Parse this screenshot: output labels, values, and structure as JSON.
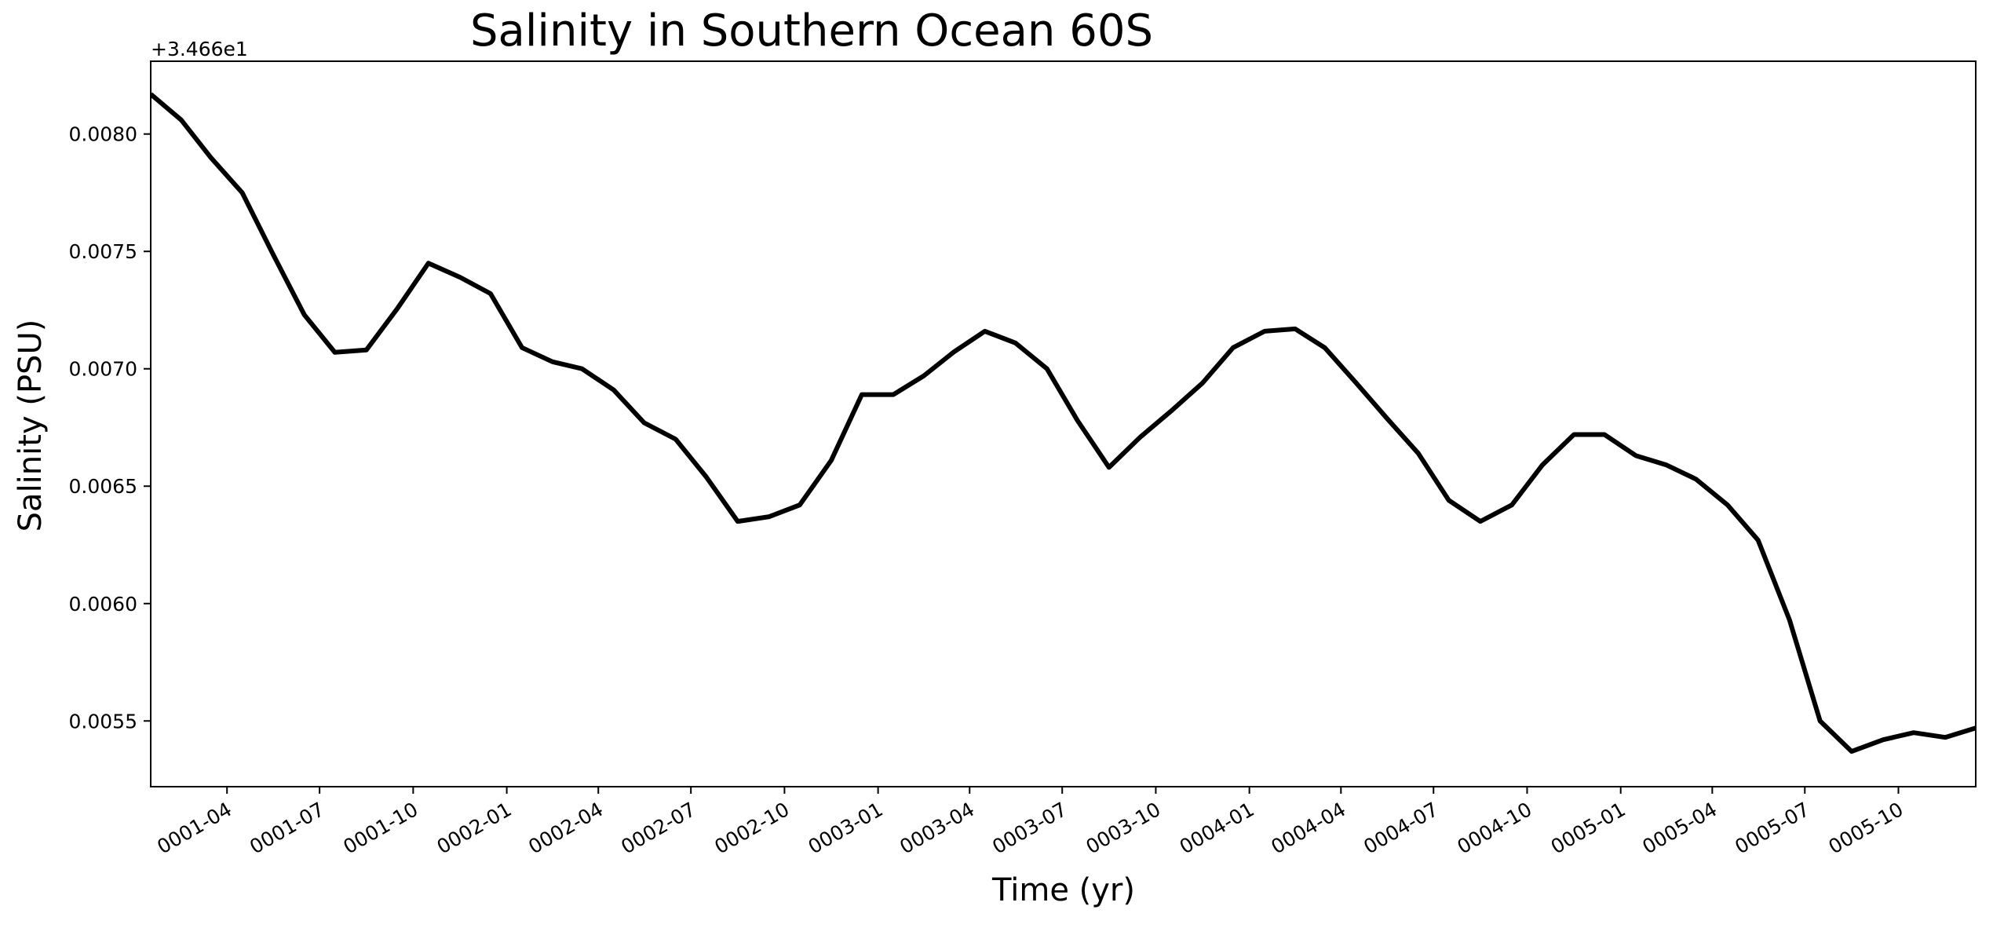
{
  "chart_data": {
    "type": "line",
    "title": "Salinity in Southern Ocean 60S",
    "xlabel": "Time (yr)",
    "ylabel": "Salinity (PSU)",
    "y_offset_label": "+3.466e1",
    "y_offset": 34.66,
    "x_tick_labels": [
      "0001-04",
      "0001-07",
      "0001-10",
      "0002-01",
      "0002-04",
      "0002-07",
      "0002-10",
      "0003-01",
      "0003-04",
      "0003-07",
      "0003-10",
      "0004-01",
      "0004-04",
      "0004-07",
      "0004-10",
      "0005-01",
      "0005-04",
      "0005-07",
      "0005-10"
    ],
    "x_tick_dates": [
      "0001-04-01",
      "0001-07-01",
      "0001-10-01",
      "0002-01-01",
      "0002-04-01",
      "0002-07-01",
      "0002-10-01",
      "0003-01-01",
      "0003-04-01",
      "0003-07-01",
      "0003-10-01",
      "0004-01-01",
      "0004-04-01",
      "0004-07-01",
      "0004-10-01",
      "0005-01-01",
      "0005-04-01",
      "0005-07-01",
      "0005-10-01"
    ],
    "y_tick_labels": [
      "0.0055",
      "0.0060",
      "0.0065",
      "0.0070",
      "0.0075",
      "0.0080"
    ],
    "y_ticks": [
      0.0055,
      0.006,
      0.0065,
      0.007,
      0.0075,
      0.008
    ],
    "xlim": [
      "0001-01-16",
      "0005-12-16"
    ],
    "ylim": [
      0.00522,
      0.00831
    ],
    "grid": false,
    "line_color": "#000000",
    "x": [
      "0001-01-16",
      "0001-02-15",
      "0001-03-16",
      "0001-04-16",
      "0001-05-16",
      "0001-06-16",
      "0001-07-16",
      "0001-08-16",
      "0001-09-16",
      "0001-10-16",
      "0001-11-16",
      "0001-12-16",
      "0002-01-16",
      "0002-02-15",
      "0002-03-16",
      "0002-04-16",
      "0002-05-16",
      "0002-06-16",
      "0002-07-16",
      "0002-08-16",
      "0002-09-16",
      "0002-10-16",
      "0002-11-16",
      "0002-12-16",
      "0003-01-16",
      "0003-02-15",
      "0003-03-16",
      "0003-04-16",
      "0003-05-16",
      "0003-06-16",
      "0003-07-16",
      "0003-08-16",
      "0003-09-16",
      "0003-10-16",
      "0003-11-16",
      "0003-12-16",
      "0004-01-16",
      "0004-02-15",
      "0004-03-16",
      "0004-04-16",
      "0004-05-16",
      "0004-06-16",
      "0004-07-16",
      "0004-08-16",
      "0004-09-16",
      "0004-10-16",
      "0004-11-16",
      "0004-12-16",
      "0005-01-16",
      "0005-02-15",
      "0005-03-16",
      "0005-04-16",
      "0005-05-16",
      "0005-06-16",
      "0005-07-16",
      "0005-08-16",
      "0005-09-16",
      "0005-10-16",
      "0005-11-16",
      "0005-12-16"
    ],
    "series": [
      {
        "values": [
          0.00817,
          0.00806,
          0.0079,
          0.00775,
          0.00749,
          0.00723,
          0.00707,
          0.00708,
          0.00726,
          0.00745,
          0.00739,
          0.00732,
          0.00709,
          0.00703,
          0.007,
          0.00691,
          0.00677,
          0.0067,
          0.00654,
          0.00635,
          0.00637,
          0.00642,
          0.00661,
          0.00689,
          0.00689,
          0.00697,
          0.00707,
          0.00716,
          0.00711,
          0.007,
          0.00678,
          0.00658,
          0.00671,
          0.00682,
          0.00694,
          0.00709,
          0.00716,
          0.00717,
          0.00709,
          0.00694,
          0.00679,
          0.00664,
          0.00644,
          0.00635,
          0.00642,
          0.00659,
          0.00672,
          0.00672,
          0.00663,
          0.00659,
          0.00653,
          0.00642,
          0.00627,
          0.00593,
          0.0055,
          0.00537,
          0.00542,
          0.00545,
          0.00543,
          0.00547
        ]
      }
    ]
  }
}
